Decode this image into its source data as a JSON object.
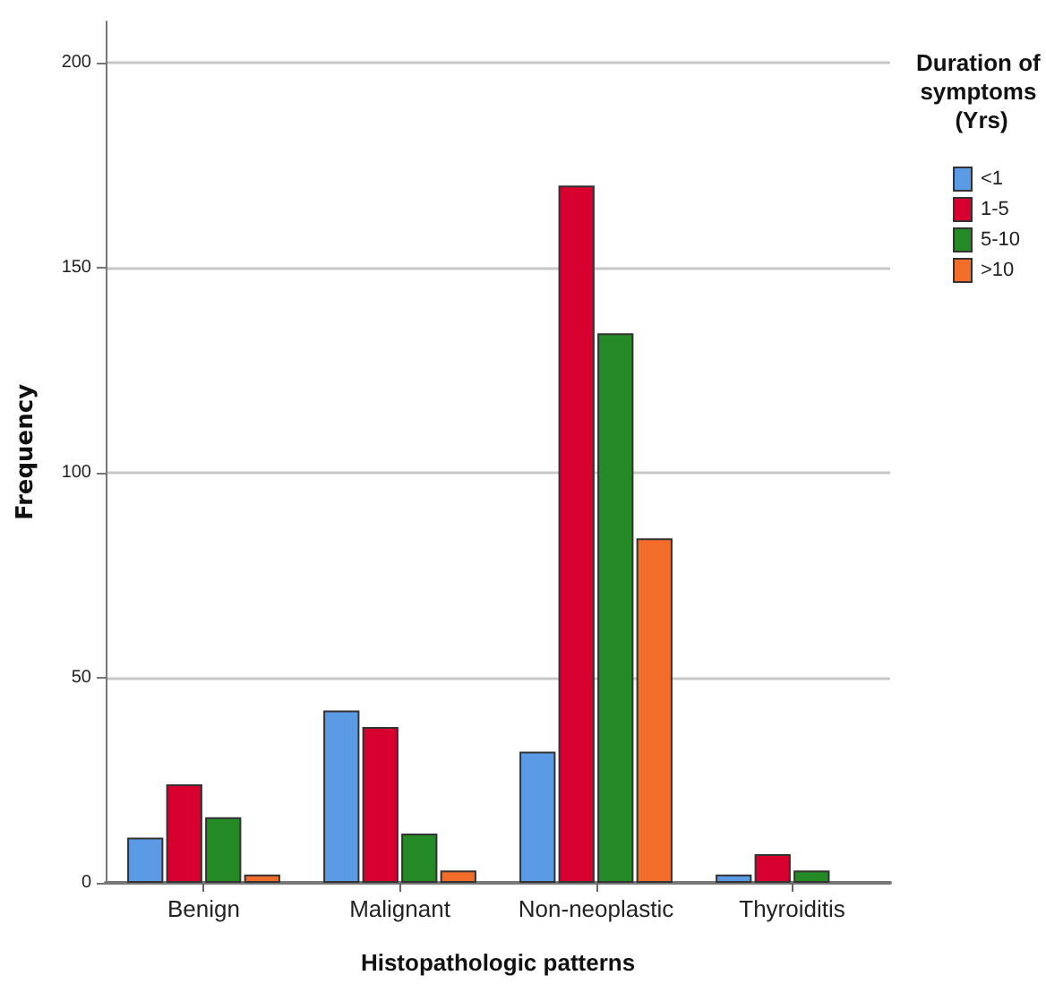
{
  "chart_data": {
    "type": "bar",
    "xlabel": "Histopathologic patterns",
    "ylabel": "Frequency",
    "legend_title": "Duration of symptoms (Yrs)",
    "categories": [
      "Benign",
      "Malignant",
      "Non-neoplastic",
      "Thyroiditis"
    ],
    "series": [
      {
        "name": "<1",
        "color": "#5b9be6",
        "values": [
          11,
          42,
          32,
          2
        ]
      },
      {
        "name": "1-5",
        "color": "#d7002f",
        "values": [
          24,
          38,
          170,
          7
        ]
      },
      {
        "name": "5-10",
        "color": "#248a26",
        "values": [
          16,
          12,
          134,
          3
        ]
      },
      {
        "name": ">10",
        "color": "#f26d2a",
        "values": [
          2,
          3,
          84,
          0
        ]
      }
    ],
    "ylim": [
      0,
      210
    ],
    "yticks": [
      0,
      50,
      100,
      150,
      200
    ],
    "grid": "y",
    "legend": "right"
  }
}
